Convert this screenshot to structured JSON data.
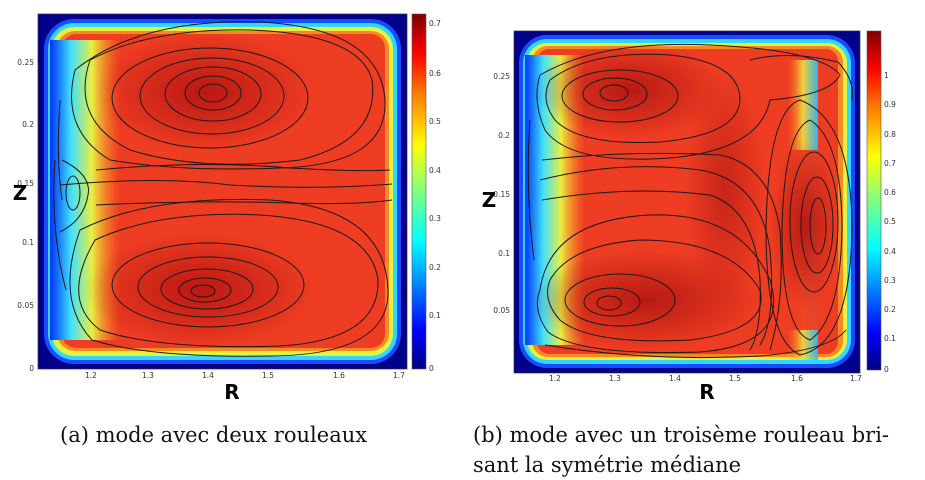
{
  "chart_data": [
    {
      "type": "heatmap",
      "xlabel": "R",
      "ylabel": "Z",
      "xlim": [
        1.13,
        1.7
      ],
      "ylim": [
        0,
        0.285
      ],
      "x_ticks": [
        "1.2",
        "1.3",
        "1.4",
        "1.5",
        "1.6",
        "1.7"
      ],
      "y_ticks": [
        "0",
        "0.05",
        "0.1",
        "0.15",
        "0.2",
        "0.25"
      ],
      "colorbar": {
        "min": 0,
        "max": 0.72,
        "ticks": [
          "0",
          "0.1",
          "0.2",
          "0.3",
          "0.4",
          "0.5",
          "0.6",
          "0.7"
        ]
      },
      "streamlines": true,
      "vortex_centers": [
        [
          1.4,
          0.225
        ],
        [
          1.4,
          0.065
        ],
        [
          1.16,
          0.15
        ]
      ]
    },
    {
      "type": "heatmap",
      "xlabel": "R",
      "ylabel": "Z",
      "xlim": [
        1.13,
        1.71
      ],
      "ylim": [
        0,
        0.285
      ],
      "x_ticks": [
        "1.2",
        "1.3",
        "1.4",
        "1.5",
        "1.6",
        "1.7"
      ],
      "y_ticks": [
        "0.05",
        "0.1",
        "0.15",
        "0.2",
        "0.25"
      ],
      "colorbar": {
        "min": 0,
        "max": 1.15,
        "ticks": [
          "0",
          "0.1",
          "0.2",
          "0.3",
          "0.4",
          "0.5",
          "0.6",
          "0.7",
          "0.8",
          "0.9",
          "1"
        ]
      },
      "streamlines": true,
      "vortex_centers": [
        [
          1.3,
          0.24
        ],
        [
          1.29,
          0.055
        ],
        [
          1.64,
          0.125
        ]
      ]
    }
  ],
  "captions": {
    "a": "(a) mode avec deux rouleaux",
    "b_line1": "(b) mode avec un troisème rouleau bri-",
    "b_line2": "sant la symétrie médiane"
  },
  "colors": {
    "jet": [
      "#00007f",
      "#0000ff",
      "#0080ff",
      "#00ffff",
      "#80ff80",
      "#ffff00",
      "#ff8000",
      "#ff0000",
      "#7f0000"
    ],
    "field_core": "#ee3b22",
    "streamline": "#1a1a1a"
  }
}
